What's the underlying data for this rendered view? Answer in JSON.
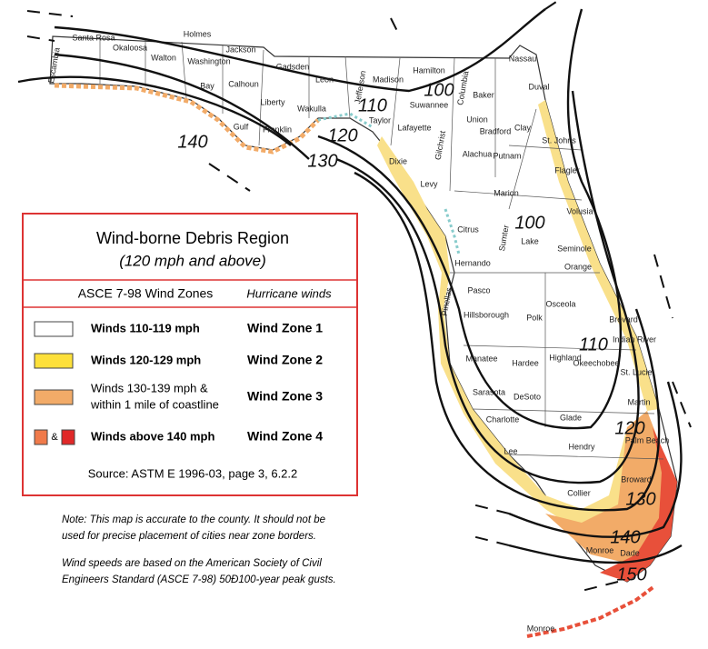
{
  "contour_labels": [
    140,
    130,
    120,
    110,
    100,
    100,
    110,
    120,
    130,
    140,
    150
  ],
  "counties": [
    "Escambia",
    "Santa Rosa",
    "Okaloosa",
    "Walton",
    "Holmes",
    "Washington",
    "Jackson",
    "Bay",
    "Calhoun",
    "Gulf",
    "Liberty",
    "Franklin",
    "Gadsden",
    "Leon",
    "Wakulla",
    "Jefferson",
    "Madison",
    "Taylor",
    "Hamilton",
    "Suwannee",
    "Lafayette",
    "Columbia",
    "Baker",
    "Union",
    "Bradford",
    "Nassau",
    "Duval",
    "Clay",
    "St. Johns",
    "Putnam",
    "Flagler",
    "Dixie",
    "Gilchrist",
    "Alachua",
    "Levy",
    "Marion",
    "Volusia",
    "Citrus",
    "Lake",
    "Sumter",
    "Seminole",
    "Orange",
    "Hernando",
    "Pasco",
    "Pinellas",
    "Hillsborough",
    "Polk",
    "Osceola",
    "Brevard",
    "Indian River",
    "Manatee",
    "Hardee",
    "Highland",
    "Okeechobee",
    "St. Lucie",
    "Sarasota",
    "DeSoto",
    "Martin",
    "Charlotte",
    "Glade",
    "Palm Beach",
    "Lee",
    "Hendry",
    "Broward",
    "Collier",
    "Monroe",
    "Dade",
    "Monroe"
  ],
  "legend": {
    "title": "Wind-borne Debris Region",
    "subtitle": "(120 mph and above)",
    "header": [
      "ASCE 7-98 Wind Zones",
      "Hurricane winds"
    ],
    "rows": [
      {
        "description": [
          "Winds 110-119 mph"
        ],
        "zone": "Wind Zone 1"
      },
      {
        "description": [
          "Winds 120-129 mph"
        ],
        "zone": "Wind Zone 2"
      },
      {
        "description": [
          "Winds 130-139 mph &",
          "within 1 mile of coastline"
        ],
        "zone": "Wind Zone 3"
      },
      {
        "description": [
          "Winds above 140 mph"
        ],
        "zone": "Wind Zone 4"
      }
    ],
    "swatch_joiner": "&",
    "source": "Source: ASTM E 1996-03, page 3, 6.2.2"
  },
  "notes": [
    "Note: This map is accurate to the county. It should not be",
    "used for precise placement of cities near zone borders.",
    "Wind speeds are based on the American Society of Civil",
    "Engineers Standard (ASCE 7-98) 50Ð100-year peak gusts."
  ]
}
